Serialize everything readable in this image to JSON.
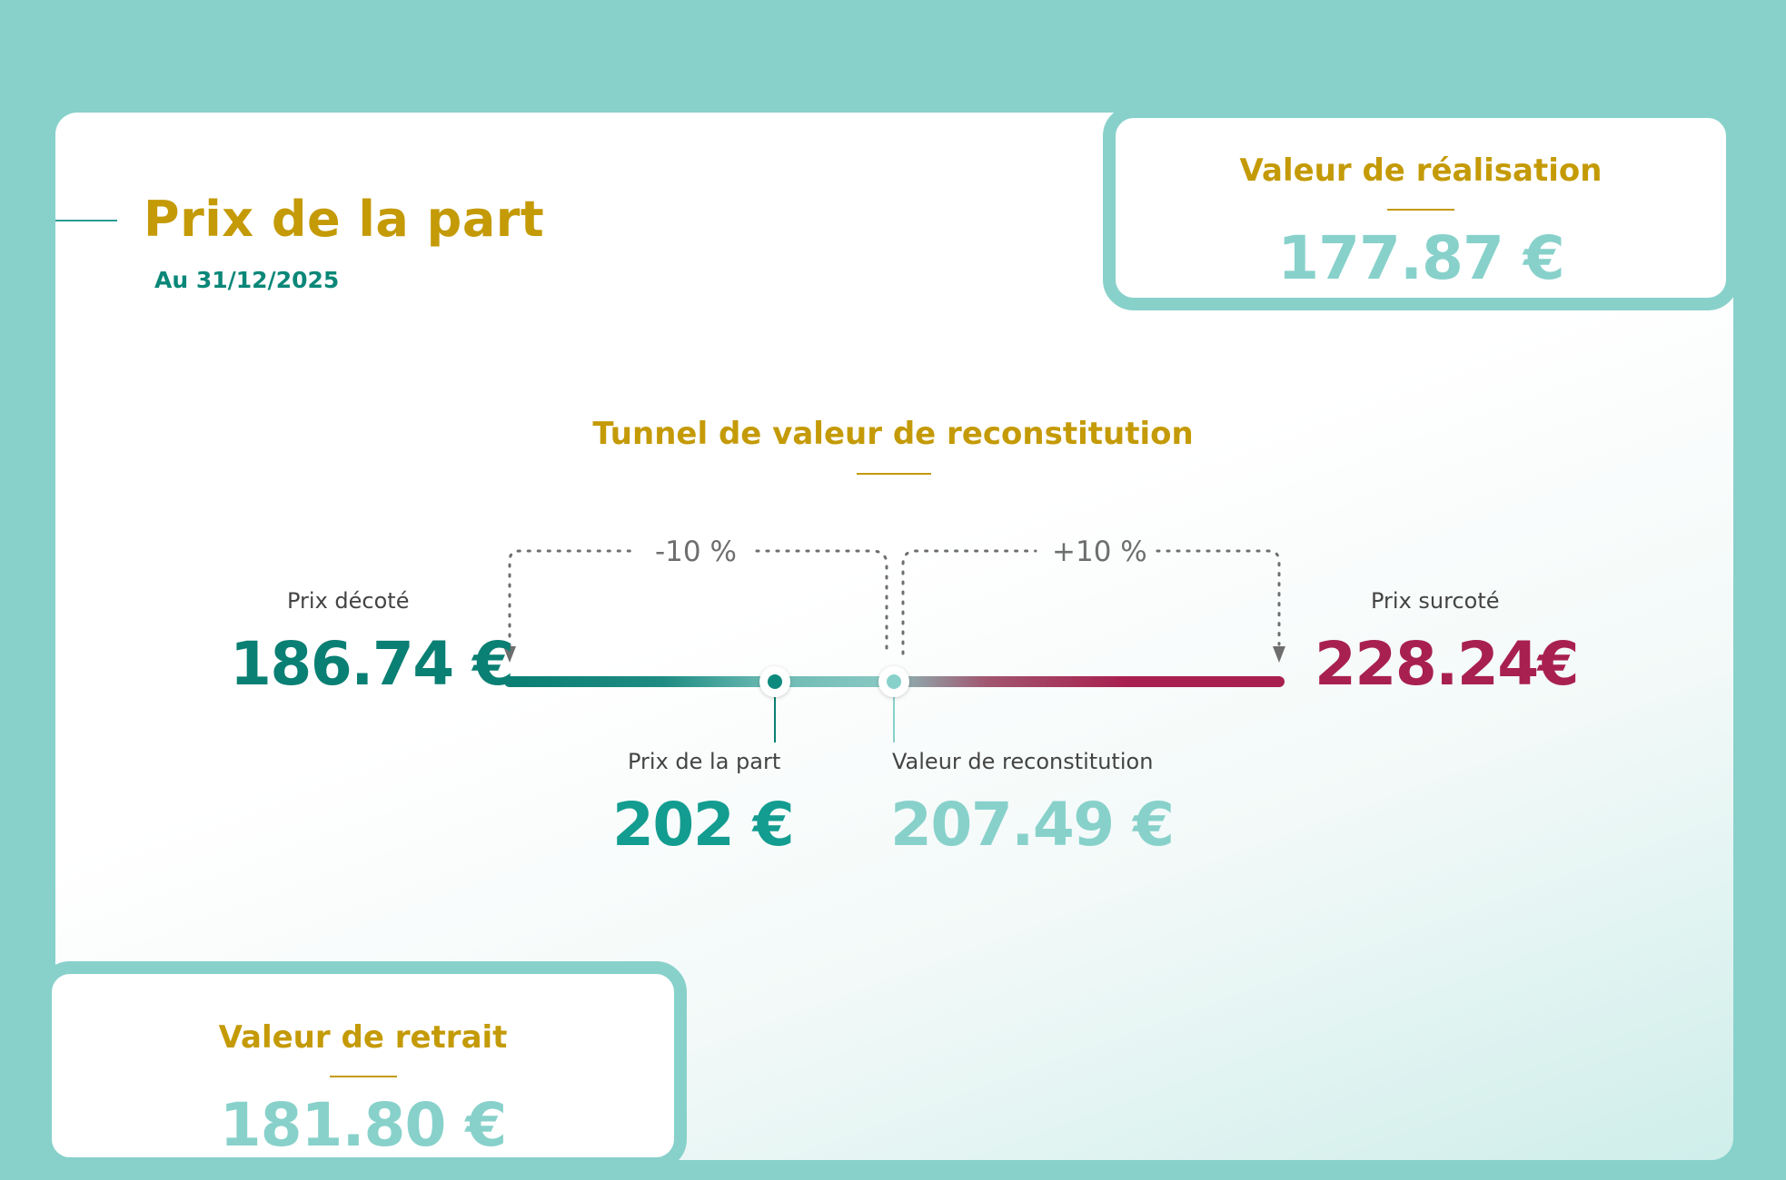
{
  "header": {
    "title": "Prix de la part",
    "date": "Au 31/12/2025"
  },
  "realisation": {
    "title": "Valeur de réalisation",
    "value": "177.87 €"
  },
  "retrait": {
    "title": "Valeur de retrait",
    "value": "181.80 €"
  },
  "tunnel": {
    "title": "Tunnel de valeur de reconstitution",
    "minus_pct": "-10 %",
    "plus_pct": "+10 %",
    "decote": {
      "label": "Prix décoté",
      "value": "186.74 €"
    },
    "surcote": {
      "label": "Prix surcoté",
      "value": "228.24€"
    },
    "part": {
      "label": "Prix de la part",
      "value": "202 €"
    },
    "reconstitution": {
      "label": "Valeur de reconstitution",
      "value": "207.49 €"
    }
  },
  "colors": {
    "background": "#88d1cb",
    "gold": "#c49a06",
    "teal_dark": "#0a7f73",
    "teal_mid": "#139c90",
    "teal_light": "#88d1cb",
    "crimson": "#a8204f"
  }
}
